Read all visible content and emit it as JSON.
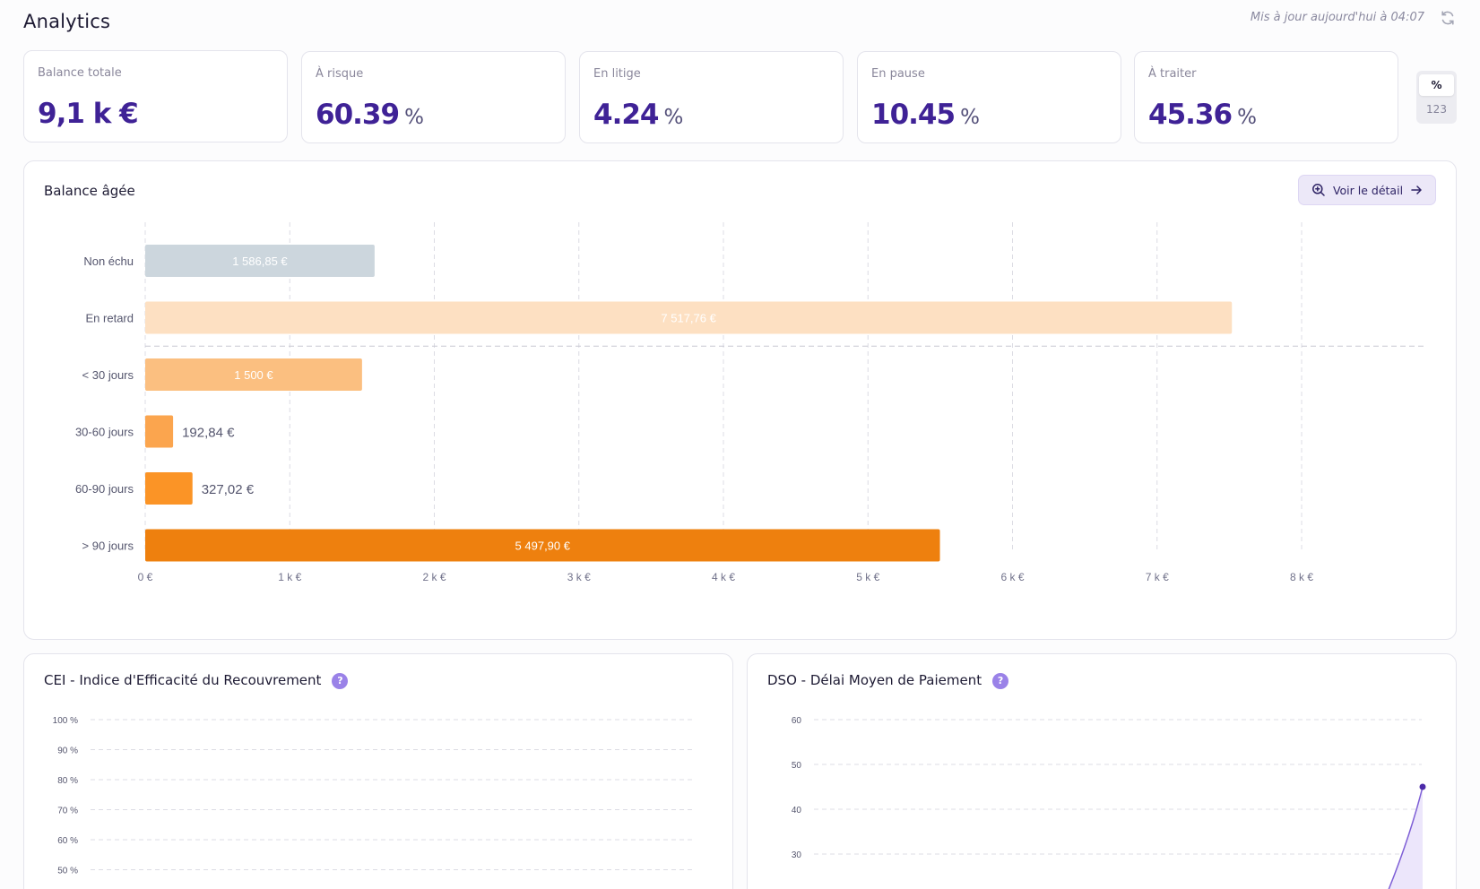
{
  "header": {
    "title": "Analytics",
    "updated": "Mis à jour aujourd'hui à 04:07"
  },
  "kpis": [
    {
      "label": "Balance totale",
      "value": "9,1 k €",
      "unit": ""
    },
    {
      "label": "À risque",
      "value": "60.39",
      "unit": "%"
    },
    {
      "label": "En litige",
      "value": "4.24",
      "unit": "%"
    },
    {
      "label": "En pause",
      "value": "10.45",
      "unit": "%"
    },
    {
      "label": "À traiter",
      "value": "45.36",
      "unit": "%"
    }
  ],
  "toggle": {
    "percent": "%",
    "count": "123",
    "selected": "%"
  },
  "aging": {
    "title": "Balance âgée",
    "detail_button": "Voir le détail"
  },
  "cei": {
    "title": "CEI - Indice d'Efficacité du Recouvrement",
    "help": "?"
  },
  "dso": {
    "title": "DSO - Délai Moyen de Paiement",
    "help": "?"
  },
  "colors": {
    "accent": "#3f2296",
    "non_echu": "#ccd6dd",
    "en_retard": "#fde0c2",
    "lt30": "#fbbf80",
    "d30_60": "#fba54e",
    "d60_90": "#fb9426",
    "gt90": "#ee800e",
    "line": "#7e5fd6"
  },
  "chart_data": [
    {
      "type": "bar",
      "orientation": "horizontal",
      "title": "Balance âgée",
      "categories": [
        "Non échu",
        "En retard",
        "< 30 jours",
        "30-60 jours",
        "60-90 jours",
        "> 90 jours"
      ],
      "values": [
        1586.85,
        7517.76,
        1500,
        192.84,
        327.02,
        5497.9
      ],
      "value_labels": [
        "1 586,85 €",
        "7 517,76 €",
        "1 500 €",
        "192,84 €",
        "327,02 €",
        "5 497,90 €"
      ],
      "colors": [
        "#ccd6dd",
        "#fde0c2",
        "#fbbf80",
        "#fba54e",
        "#fb9426",
        "#ee800e"
      ],
      "xlim": [
        0,
        8000
      ],
      "x_ticks": [
        0,
        1000,
        2000,
        3000,
        4000,
        5000,
        6000,
        7000,
        8000
      ],
      "x_tick_labels": [
        "0 €",
        "1 k €",
        "2 k €",
        "3 k €",
        "4 k €",
        "5 k €",
        "6 k €",
        "7 k €",
        "8 k €"
      ],
      "separator_after": "En retard",
      "grid": true
    },
    {
      "type": "line",
      "title": "CEI - Indice d'Efficacité du Recouvrement",
      "y_tick_labels": [
        "100 %",
        "90 %",
        "80 %",
        "70 %",
        "60 %",
        "50 %"
      ],
      "y_ticks": [
        100,
        90,
        80,
        70,
        60,
        50
      ],
      "ylim": [
        50,
        100
      ],
      "series": [],
      "grid": true
    },
    {
      "type": "area",
      "title": "DSO - Délai Moyen de Paiement",
      "y_ticks": [
        60,
        50,
        40,
        30
      ],
      "y_tick_labels": [
        "60",
        "50",
        "40",
        "30"
      ],
      "ylim": [
        30,
        60
      ],
      "series": [
        {
          "name": "DSO",
          "last_value": 45
        }
      ],
      "grid": true
    }
  ]
}
